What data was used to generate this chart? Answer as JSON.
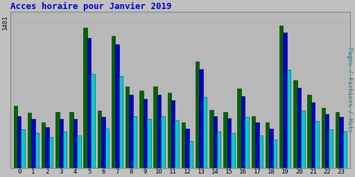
{
  "title": "Acces horaire pour Janvier 2019",
  "title_color": "#0000cc",
  "background_color": "#c0c0c0",
  "plot_bg_color": "#b8b8b8",
  "ylabel_right": "Pages / Fichiers / Hits",
  "ylabel_right_color": "#008080",
  "x_labels": [
    "0",
    "1",
    "2",
    "3",
    "4",
    "5",
    "6",
    "7",
    "8",
    "9",
    "10",
    "11",
    "12",
    "13",
    "14",
    "15",
    "16",
    "17",
    "18",
    "19",
    "20",
    "21",
    "22",
    "23"
  ],
  "hours": [
    0,
    1,
    2,
    3,
    4,
    5,
    6,
    7,
    8,
    9,
    10,
    11,
    12,
    13,
    14,
    15,
    16,
    17,
    18,
    19,
    20,
    21,
    22,
    23
  ],
  "pages": [
    600,
    530,
    440,
    540,
    540,
    1350,
    550,
    1270,
    780,
    740,
    780,
    720,
    440,
    1020,
    560,
    540,
    760,
    500,
    440,
    1370,
    840,
    700,
    580,
    540
  ],
  "fichiers": [
    500,
    470,
    390,
    470,
    470,
    1250,
    490,
    1190,
    700,
    660,
    700,
    650,
    380,
    950,
    500,
    480,
    690,
    440,
    380,
    1300,
    770,
    630,
    520,
    490
  ],
  "hits": [
    370,
    340,
    300,
    350,
    310,
    900,
    380,
    880,
    500,
    470,
    500,
    460,
    260,
    680,
    350,
    340,
    490,
    310,
    270,
    940,
    550,
    450,
    370,
    350
  ],
  "color_pages": "#006400",
  "color_fichiers": "#0000cc",
  "color_hits": "#00cccc",
  "bar_width": 0.27,
  "ylim": [
    0,
    1500
  ],
  "ytick_label": "1401",
  "ytick_pos": 1401
}
